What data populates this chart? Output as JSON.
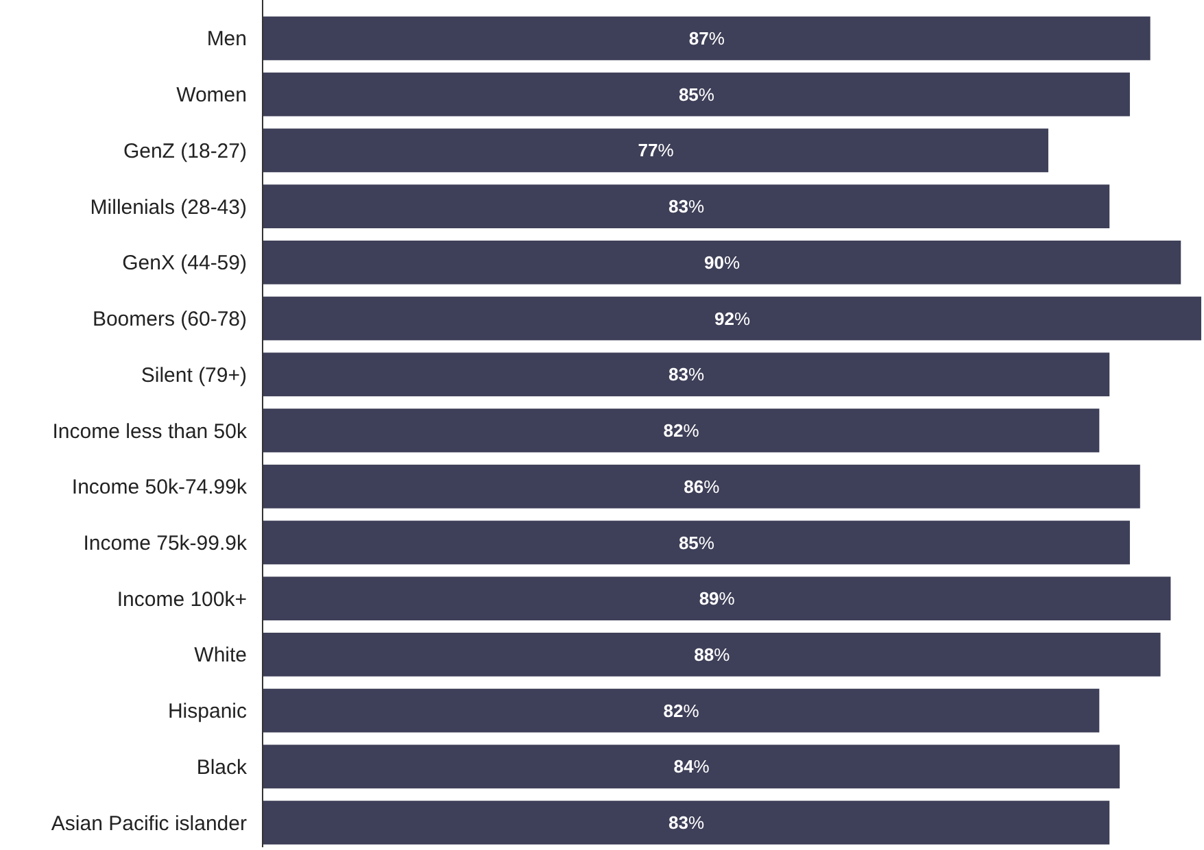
{
  "chart_data": {
    "type": "bar",
    "orientation": "horizontal",
    "categories": [
      "Men",
      "Women",
      "GenZ (18-27)",
      "Millenials (28-43)",
      "GenX (44-59)",
      "Boomers (60-78)",
      "Silent (79+)",
      "Income less than 50k",
      "Income 50k-74.99k",
      "Income  75k-99.9k",
      "Income 100k+",
      "White",
      "Hispanic",
      "Black",
      "Asian Pacific islander"
    ],
    "values": [
      87,
      85,
      77,
      83,
      90,
      92,
      83,
      82,
      86,
      85,
      89,
      88,
      82,
      84,
      83
    ],
    "value_labels": [
      "87%",
      "85%",
      "77%",
      "83%",
      "90%",
      "92%",
      "83%",
      "82%",
      "86%",
      "85%",
      "89%",
      "88%",
      "82%",
      "84%",
      "83%"
    ],
    "color": "#3e3f58"
  }
}
